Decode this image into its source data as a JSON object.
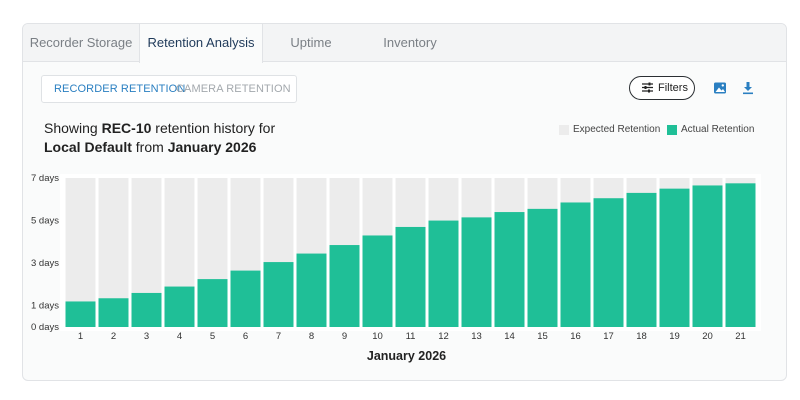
{
  "tabs": [
    {
      "label": "Recorder Storage",
      "active": false
    },
    {
      "label": "Retention Analysis",
      "active": true
    },
    {
      "label": "Uptime",
      "active": false
    },
    {
      "label": "Inventory",
      "active": false
    }
  ],
  "segmented": {
    "options": [
      {
        "label": "RECORDER RETENTION",
        "active": true
      },
      {
        "label": "CAMERA RETENTION",
        "active": false
      }
    ]
  },
  "toolbar": {
    "filters_label": "Filters",
    "image_icon": "image-icon",
    "download_icon": "download-icon"
  },
  "caption": {
    "prefix": "Showing ",
    "recorder": "REC-10",
    "middle": " retention history for",
    "profile": "Local Default",
    "from": " from ",
    "period": "January 2026"
  },
  "colors": {
    "expected": "#ececec",
    "actual": "#1fbf97",
    "accent": "#2a7fc1"
  },
  "chart_data": {
    "type": "bar",
    "title": "",
    "xlabel": "January 2026",
    "ylabel": "",
    "ytick_labels": [
      "0 days",
      "1 days",
      "3 days",
      "5 days",
      "7 days"
    ],
    "ytick_values": [
      0,
      1,
      3,
      5,
      7
    ],
    "ylim": [
      0,
      7
    ],
    "legend_position": "top-right",
    "grid": false,
    "categories": [
      "1",
      "2",
      "3",
      "4",
      "5",
      "6",
      "7",
      "8",
      "9",
      "10",
      "11",
      "12",
      "13",
      "14",
      "15",
      "16",
      "17",
      "18",
      "19",
      "20",
      "21"
    ],
    "series": [
      {
        "name": "Expected Retention",
        "values": [
          7,
          7,
          7,
          7,
          7,
          7,
          7,
          7,
          7,
          7,
          7,
          7,
          7,
          7,
          7,
          7,
          7,
          7,
          7,
          7,
          7
        ]
      },
      {
        "name": "Actual Retention",
        "values": [
          1.2,
          1.35,
          1.6,
          1.9,
          2.25,
          2.65,
          3.05,
          3.45,
          3.85,
          4.3,
          4.7,
          5.0,
          5.15,
          5.4,
          5.55,
          5.85,
          6.05,
          6.3,
          6.5,
          6.65,
          6.75
        ]
      }
    ]
  }
}
